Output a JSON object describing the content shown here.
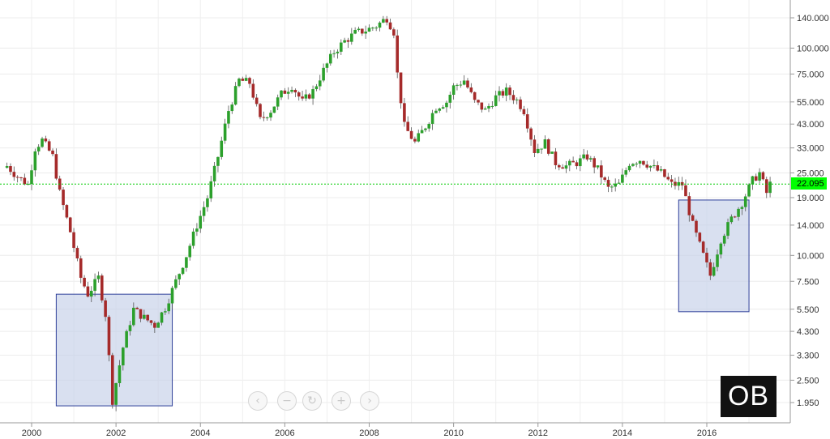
{
  "chart_data": {
    "type": "candlestick",
    "scale": "log",
    "grid": true,
    "x_ticks": [
      "2000",
      "2002",
      "2004",
      "2006",
      "2008",
      "2010",
      "2012",
      "2014",
      "2016"
    ],
    "y_ticks": [
      "140.000",
      "100.000",
      "75.000",
      "55.000",
      "43.000",
      "33.000",
      "25.000",
      "19.000",
      "14.000",
      "10.000",
      "7.500",
      "5.500",
      "4.300",
      "3.300",
      "2.500",
      "1.950"
    ],
    "last_price": "22.095",
    "last_price_value": 22.095,
    "colors": {
      "up": "#2ca02c",
      "down": "#a52a2a",
      "price_line": "#00cc00",
      "highlight_fill": "#c5cfe8",
      "highlight_border": "#2e3f99"
    },
    "highlights": [
      {
        "from": "2000-08",
        "to": "2003-05",
        "low": 1.88,
        "high": 6.5
      },
      {
        "from": "2015-05",
        "to": "2017-01",
        "low": 5.35,
        "high": 18.5
      }
    ],
    "price_path": [
      [
        "1999-06",
        27
      ],
      [
        "1999-09",
        24
      ],
      [
        "1999-12",
        22
      ],
      [
        "2000-02",
        33
      ],
      [
        "2000-04",
        36
      ],
      [
        "2000-07",
        30
      ],
      [
        "2000-09",
        20
      ],
      [
        "2000-12",
        13
      ],
      [
        "2001-03",
        7.8
      ],
      [
        "2001-05",
        6.5
      ],
      [
        "2001-08",
        7.8
      ],
      [
        "2001-10",
        5.2
      ],
      [
        "2001-12",
        2.0
      ],
      [
        "2002-03",
        3.6
      ],
      [
        "2002-06",
        5.5
      ],
      [
        "2002-09",
        5.0
      ],
      [
        "2002-12",
        4.6
      ],
      [
        "2003-03",
        5.6
      ],
      [
        "2003-06",
        7.5
      ],
      [
        "2003-09",
        10
      ],
      [
        "2003-12",
        14
      ],
      [
        "2004-03",
        19
      ],
      [
        "2004-06",
        30
      ],
      [
        "2004-09",
        50
      ],
      [
        "2004-12",
        70
      ],
      [
        "2005-03",
        68
      ],
      [
        "2005-06",
        45
      ],
      [
        "2005-09",
        50
      ],
      [
        "2005-12",
        60
      ],
      [
        "2006-03",
        66
      ],
      [
        "2006-06",
        55
      ],
      [
        "2006-09",
        62
      ],
      [
        "2006-12",
        78
      ],
      [
        "2007-03",
        96
      ],
      [
        "2007-06",
        108
      ],
      [
        "2007-09",
        118
      ],
      [
        "2007-12",
        122
      ],
      [
        "2008-03",
        128
      ],
      [
        "2008-06",
        140
      ],
      [
        "2008-08",
        120
      ],
      [
        "2008-09",
        75
      ],
      [
        "2008-11",
        42
      ],
      [
        "2009-02",
        35
      ],
      [
        "2009-05",
        42
      ],
      [
        "2009-08",
        52
      ],
      [
        "2009-11",
        55
      ],
      [
        "2010-01",
        65
      ],
      [
        "2010-04",
        70
      ],
      [
        "2010-07",
        55
      ],
      [
        "2010-10",
        50
      ],
      [
        "2011-01",
        58
      ],
      [
        "2011-04",
        62
      ],
      [
        "2011-07",
        56
      ],
      [
        "2011-09",
        50
      ],
      [
        "2011-12",
        32
      ],
      [
        "2012-03",
        35
      ],
      [
        "2012-06",
        28
      ],
      [
        "2012-09",
        27
      ],
      [
        "2012-12",
        28
      ],
      [
        "2013-03",
        30
      ],
      [
        "2013-06",
        26
      ],
      [
        "2013-09",
        21
      ],
      [
        "2013-12",
        22
      ],
      [
        "2014-03",
        28
      ],
      [
        "2014-06",
        29
      ],
      [
        "2014-09",
        27
      ],
      [
        "2014-12",
        25
      ],
      [
        "2015-03",
        22
      ],
      [
        "2015-06",
        22
      ],
      [
        "2015-09",
        14
      ],
      [
        "2015-12",
        10
      ],
      [
        "2016-02",
        8.0
      ],
      [
        "2016-05",
        12
      ],
      [
        "2016-08",
        15
      ],
      [
        "2016-11",
        18
      ],
      [
        "2017-02",
        23
      ],
      [
        "2017-04",
        25
      ],
      [
        "2017-06",
        20
      ],
      [
        "2017-07",
        22.1
      ]
    ]
  },
  "navigator": {
    "buttons": [
      {
        "id": "scroll-left",
        "glyph": "‹"
      },
      {
        "id": "zoom-out",
        "glyph": "−"
      },
      {
        "id": "reset",
        "glyph": "↻"
      },
      {
        "id": "zoom-in",
        "glyph": "+"
      },
      {
        "id": "scroll-right",
        "glyph": "›"
      }
    ]
  },
  "logo": {
    "text": "OB"
  }
}
